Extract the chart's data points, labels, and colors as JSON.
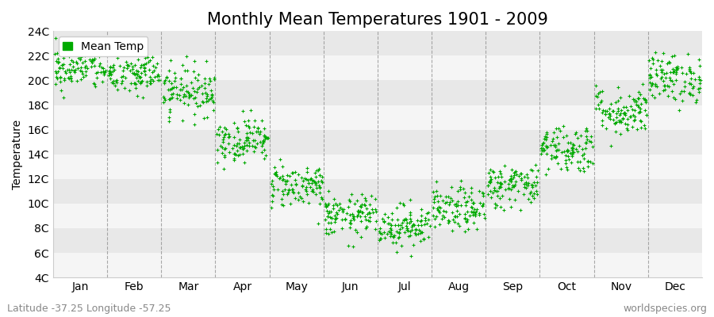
{
  "title": "Monthly Mean Temperatures 1901 - 2009",
  "ylabel": "Temperature",
  "bottom_left_label": "Latitude -37.25 Longitude -57.25",
  "bottom_right_label": "worldspecies.org",
  "legend_label": "Mean Temp",
  "months": [
    "Jan",
    "Feb",
    "Mar",
    "Apr",
    "May",
    "Jun",
    "Jul",
    "Aug",
    "Sep",
    "Oct",
    "Nov",
    "Dec"
  ],
  "monthly_means": [
    21.0,
    20.5,
    19.2,
    15.2,
    11.5,
    9.0,
    8.2,
    9.5,
    11.5,
    14.5,
    17.5,
    20.2
  ],
  "monthly_stds": [
    0.9,
    0.9,
    1.0,
    0.9,
    0.9,
    0.85,
    0.85,
    0.9,
    0.9,
    1.0,
    1.0,
    1.0
  ],
  "n_years": 109,
  "ylim_min": 4,
  "ylim_max": 24,
  "ytick_step": 2,
  "dot_color": "#00aa00",
  "dot_size": 5,
  "bg_color": "#f5f5f5",
  "stripe_light": "#f5f5f5",
  "stripe_dark": "#e8e8e8",
  "title_fontsize": 15,
  "axis_fontsize": 10,
  "tick_fontsize": 10,
  "label_fontsize": 9,
  "dashed_color": "#888888"
}
